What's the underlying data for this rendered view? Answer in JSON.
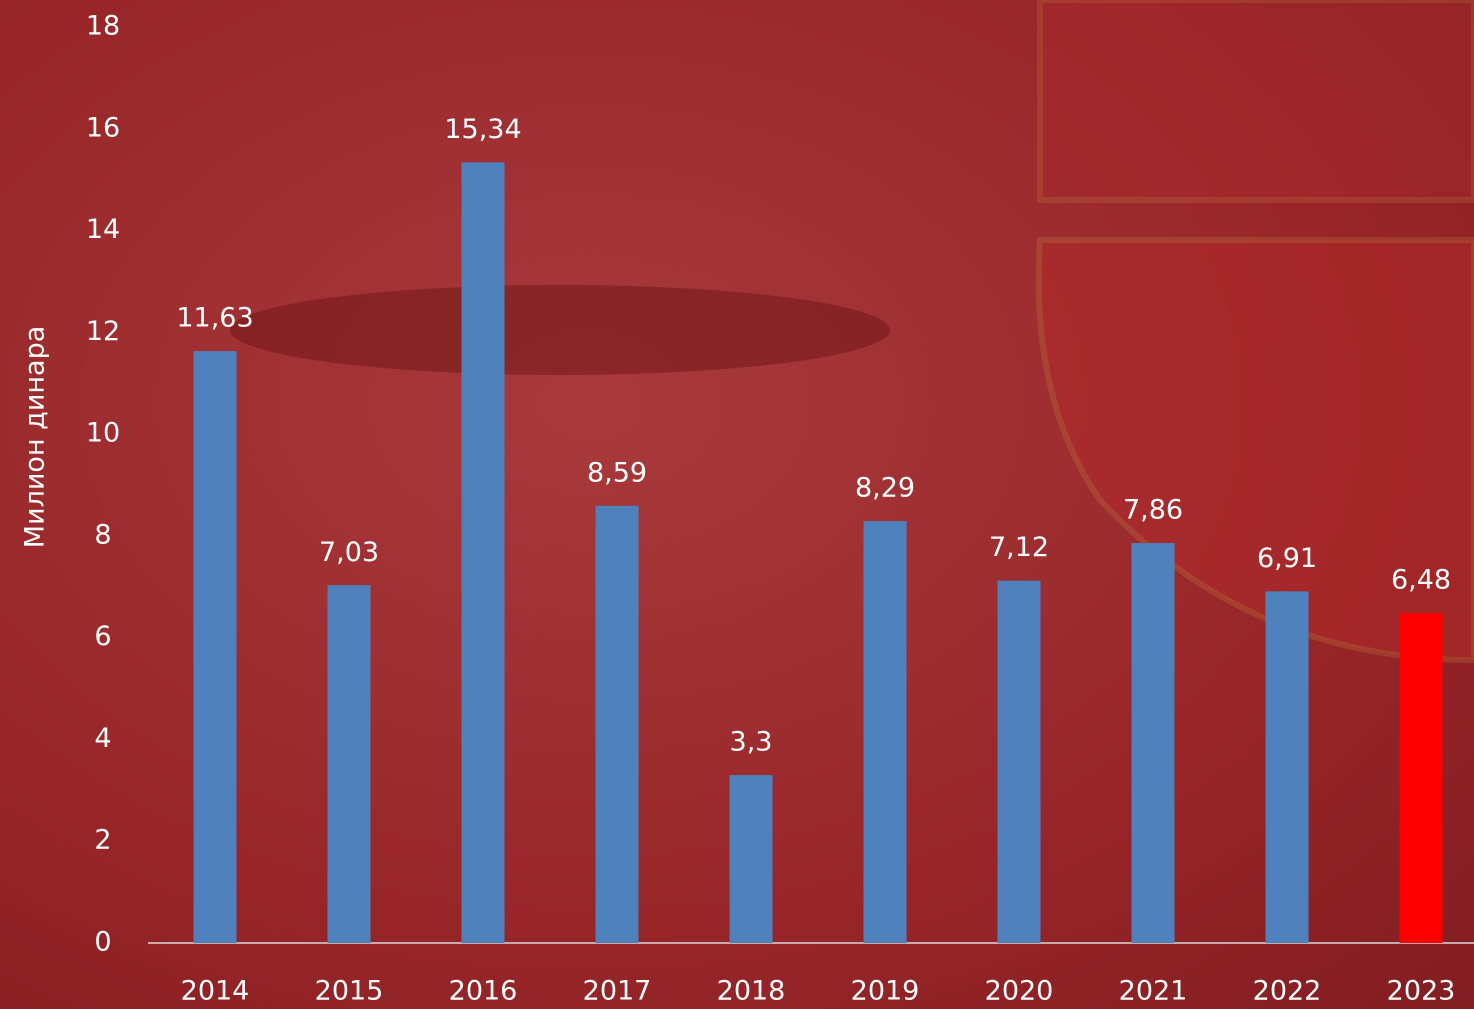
{
  "chart_data": {
    "type": "bar",
    "y_label": "Милион динара",
    "categories": [
      "2014",
      "2015",
      "2016",
      "2017",
      "2018",
      "2019",
      "2020",
      "2021",
      "2022",
      "2023"
    ],
    "values": [
      11.63,
      7.03,
      15.34,
      8.59,
      3.3,
      8.29,
      7.12,
      7.86,
      6.91,
      6.48
    ],
    "value_labels": [
      "11,63",
      "7,03",
      "15,34",
      "8,59",
      "3,3",
      "8,29",
      "7,12",
      "7,86",
      "6,91",
      "6,48"
    ],
    "colors": [
      "#4f81bd",
      "#4f81bd",
      "#4f81bd",
      "#4f81bd",
      "#4f81bd",
      "#4f81bd",
      "#4f81bd",
      "#4f81bd",
      "#4f81bd",
      "#ff0000"
    ],
    "ylim": [
      0,
      18
    ],
    "yticks": [
      0,
      2,
      4,
      6,
      8,
      10,
      12,
      14,
      16,
      18
    ],
    "grid": false
  }
}
